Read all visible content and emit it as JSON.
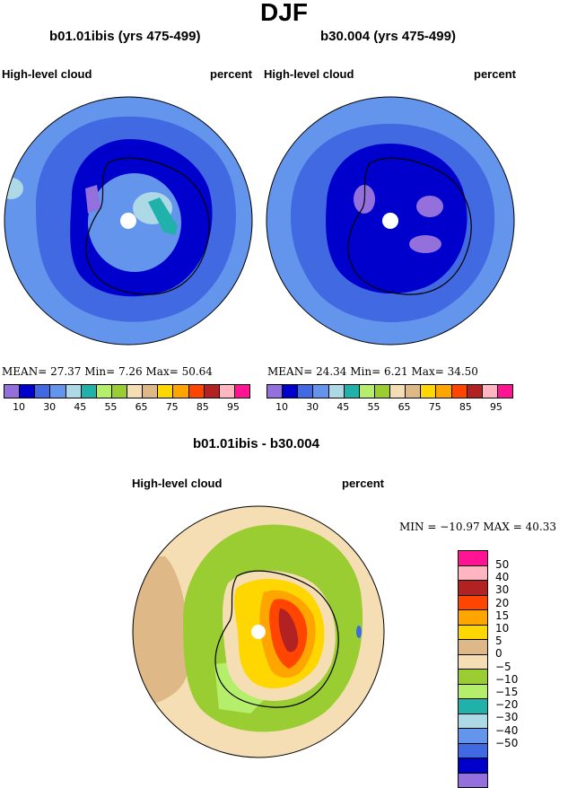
{
  "title": "DJF",
  "panels": [
    {
      "title": "b01.01ibis (yrs 475-499)",
      "left_label": "High-level cloud",
      "right_label": "percent",
      "stats": "MEAN=   27.37  Min=    7.26  Max=   50.64"
    },
    {
      "title": "b30.004 (yrs 475-499)",
      "left_label": "High-level cloud",
      "right_label": "percent",
      "stats": "MEAN=  24.34  Min=    6.21  Max=   34.50"
    },
    {
      "title": "b01.01ibis - b30.004",
      "left_label": "High-level cloud",
      "right_label": "percent",
      "stats": "MIN = −10.97 MAX =  40.33"
    }
  ],
  "colorbar_abs": {
    "colors": [
      "#9370db",
      "#0000cd",
      "#4169e1",
      "#6495ed",
      "#add8e6",
      "#20b2aa",
      "#b4ee6a",
      "#9acd32",
      "#f5deb3",
      "#deb887",
      "#ffd700",
      "#ffa500",
      "#ff4500",
      "#b22222",
      "#ffb6c1",
      "#ff1493"
    ],
    "ticks": [
      "10",
      "30",
      "45",
      "55",
      "65",
      "75",
      "85",
      "95"
    ]
  },
  "colorbar_diff": {
    "colors": [
      "#ff1493",
      "#ffb6c1",
      "#b22222",
      "#ff4500",
      "#ffa500",
      "#ffd700",
      "#deb887",
      "#f5deb3",
      "#9acd32",
      "#b4ee6a",
      "#20b2aa",
      "#add8e6",
      "#6495ed",
      "#4169e1",
      "#0000cd",
      "#9370db"
    ],
    "ticks": [
      "50",
      "40",
      "30",
      "20",
      "15",
      "10",
      "5",
      "0",
      "−5",
      "−10",
      "−15",
      "−20",
      "−30",
      "−40",
      "−50"
    ]
  }
}
